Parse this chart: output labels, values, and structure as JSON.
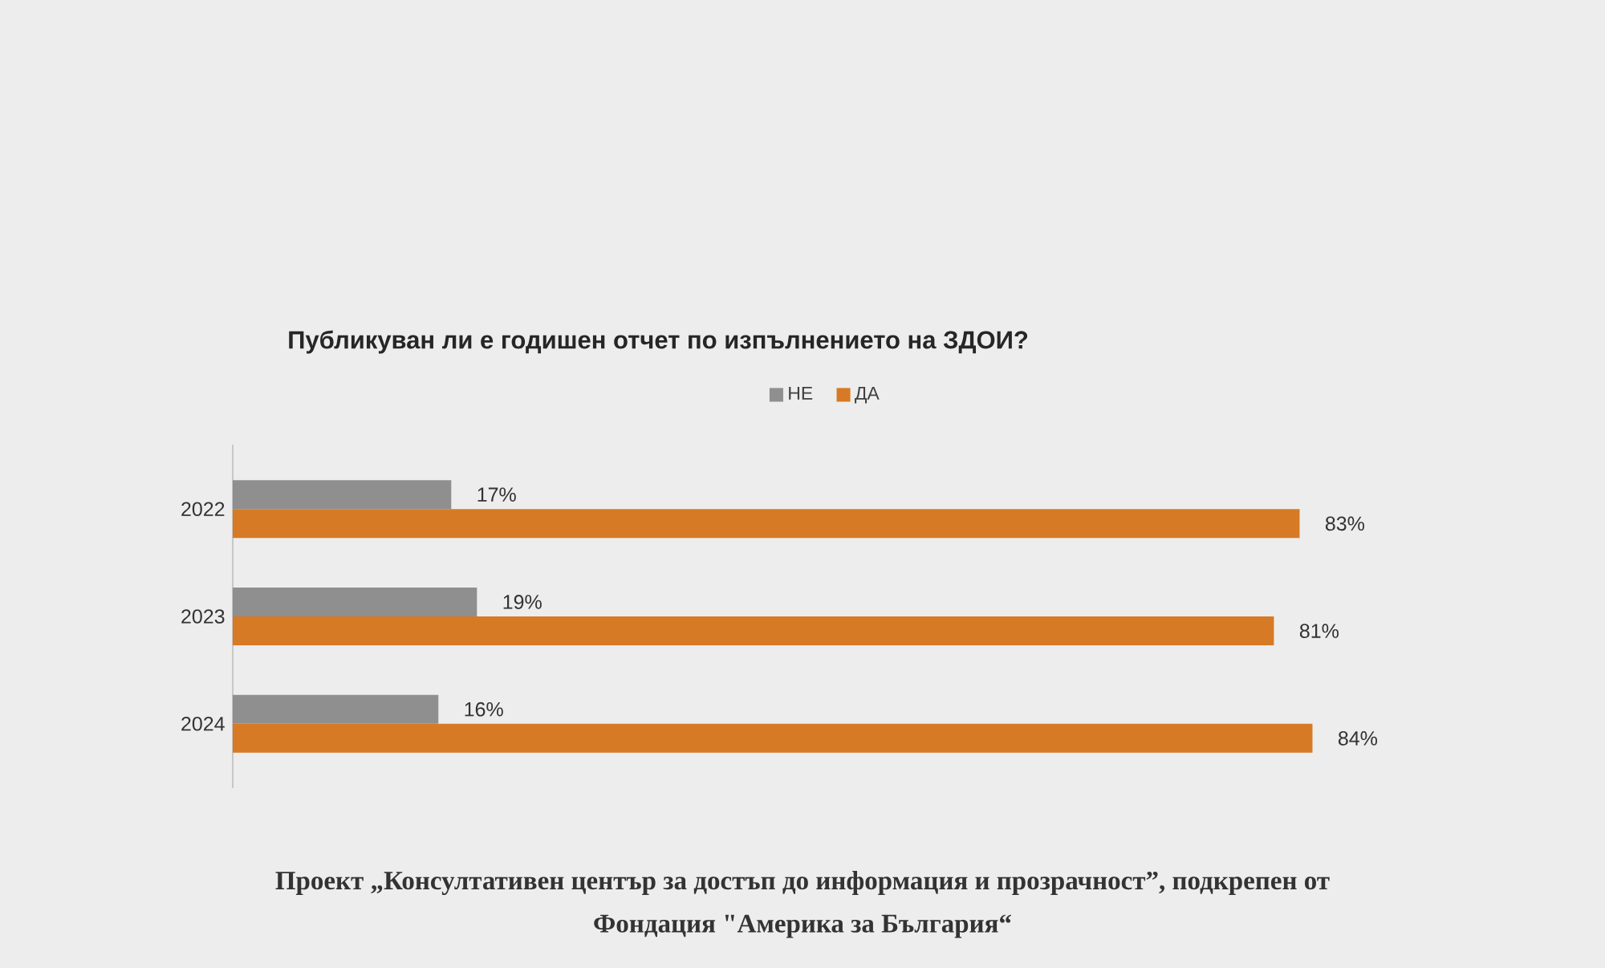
{
  "chart_data": {
    "type": "bar",
    "orientation": "horizontal",
    "title": "Публикуван ли е годишен отчет по изпълнението на ЗДОИ?",
    "categories": [
      "2022",
      "2023",
      "2024"
    ],
    "series": [
      {
        "name": "НЕ",
        "color": "#8f8f8f",
        "values": [
          17,
          19,
          16
        ],
        "value_labels": [
          "17%",
          "19%",
          "16%"
        ]
      },
      {
        "name": "ДА",
        "color": "#d77a25",
        "values": [
          83,
          81,
          84
        ],
        "value_labels": [
          "83%",
          "81%",
          "84%"
        ]
      }
    ],
    "legend": "top",
    "tick_labels": "y",
    "annotations": [
      "Проект „Консултативен център за достъп до информация и прозрачност”, подкрепен от",
      "Фондация \"Америка за България“"
    ]
  }
}
